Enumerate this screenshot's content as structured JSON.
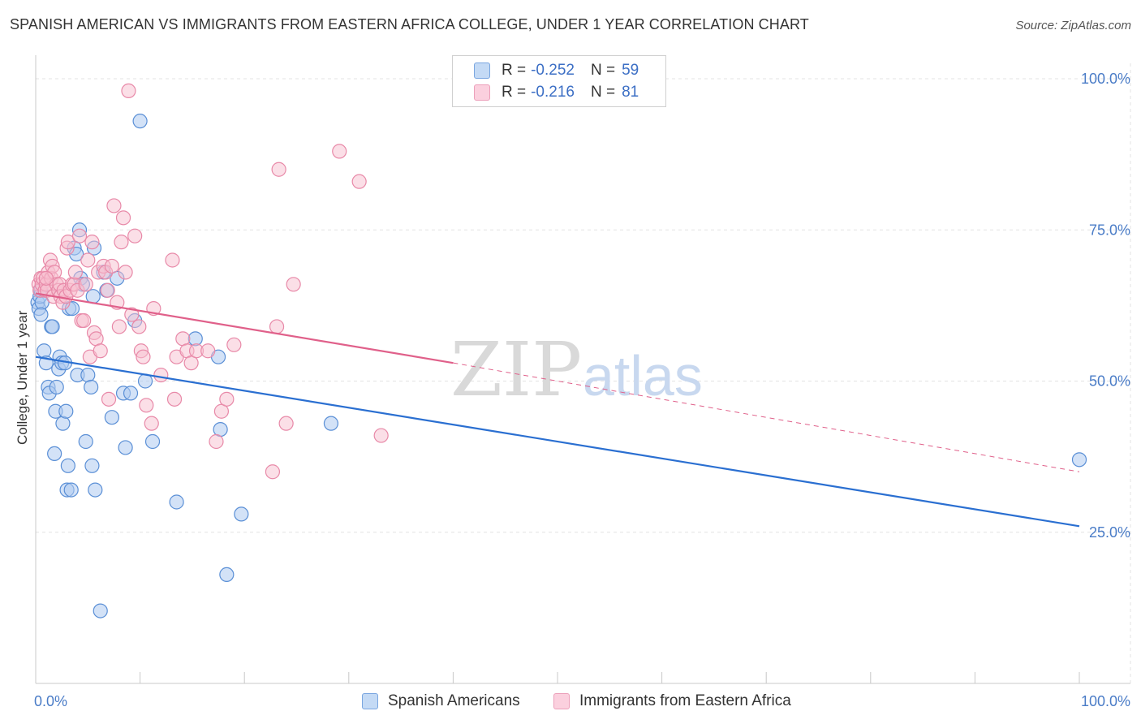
{
  "header": {
    "title": "SPANISH AMERICAN VS IMMIGRANTS FROM EASTERN AFRICA COLLEGE, UNDER 1 YEAR CORRELATION CHART",
    "source": "Source: ZipAtlas.com"
  },
  "legend": {
    "rows": [
      {
        "r_label": "R =",
        "r_value": "-0.252",
        "n_label": "N =",
        "n_value": "59"
      },
      {
        "r_label": "R =",
        "r_value": "-0.216",
        "n_label": "N =",
        "n_value": "81"
      }
    ]
  },
  "watermark": {
    "zip": "ZIP",
    "atlas": "atlas"
  },
  "colors": {
    "blue_fill": "#aecbf0",
    "blue_stroke": "#5a8fd6",
    "blue_line": "#2a6fd1",
    "pink_fill": "#f7bfd0",
    "pink_stroke": "#e889a8",
    "pink_line": "#e0608a",
    "tick_text": "#4a7cc7"
  },
  "chart_data": {
    "type": "scatter",
    "title": "SPANISH AMERICAN VS IMMIGRANTS FROM EASTERN AFRICA COLLEGE, UNDER 1 YEAR CORRELATION CHART",
    "xlabel": "",
    "ylabel": "College, Under 1 year",
    "xlim": [
      0,
      100
    ],
    "ylim": [
      0,
      100
    ],
    "x_tick_labels": [
      "0.0%",
      "100.0%"
    ],
    "y_ticks": [
      25,
      50,
      75,
      100
    ],
    "y_tick_labels": [
      "25.0%",
      "50.0%",
      "75.0%",
      "100.0%"
    ],
    "grid": true,
    "legend_position": "bottom",
    "series": [
      {
        "name": "Spanish Americans",
        "color": "#5a8fd6",
        "r": -0.252,
        "n": 59,
        "trend": {
          "x": [
            0,
            100
          ],
          "y": [
            54,
            26
          ]
        },
        "points": [
          [
            0.2,
            63
          ],
          [
            0.3,
            62
          ],
          [
            0.4,
            64
          ],
          [
            0.5,
            65
          ],
          [
            0.6,
            63
          ],
          [
            0.8,
            55
          ],
          [
            1.0,
            53
          ],
          [
            1.2,
            49
          ],
          [
            1.3,
            48
          ],
          [
            1.5,
            59
          ],
          [
            1.6,
            59
          ],
          [
            1.8,
            38
          ],
          [
            1.9,
            45
          ],
          [
            2.0,
            49
          ],
          [
            2.2,
            52
          ],
          [
            2.3,
            54
          ],
          [
            2.5,
            53
          ],
          [
            2.6,
            43
          ],
          [
            2.8,
            53
          ],
          [
            2.9,
            45
          ],
          [
            3.0,
            32
          ],
          [
            3.1,
            36
          ],
          [
            3.2,
            62
          ],
          [
            3.4,
            32
          ],
          [
            3.5,
            62
          ],
          [
            3.7,
            72
          ],
          [
            3.9,
            71
          ],
          [
            4.0,
            51
          ],
          [
            4.2,
            75
          ],
          [
            4.3,
            67
          ],
          [
            4.5,
            66
          ],
          [
            4.8,
            40
          ],
          [
            5.0,
            51
          ],
          [
            5.3,
            49
          ],
          [
            5.4,
            36
          ],
          [
            5.5,
            64
          ],
          [
            5.6,
            72
          ],
          [
            5.7,
            32
          ],
          [
            6.2,
            12
          ],
          [
            6.5,
            68
          ],
          [
            6.8,
            65
          ],
          [
            7.3,
            44
          ],
          [
            7.8,
            67
          ],
          [
            8.4,
            48
          ],
          [
            8.6,
            39
          ],
          [
            9.1,
            48
          ],
          [
            9.5,
            60
          ],
          [
            10.0,
            93
          ],
          [
            10.5,
            50
          ],
          [
            11.2,
            40
          ],
          [
            13.5,
            30
          ],
          [
            15.3,
            57
          ],
          [
            17.5,
            54
          ],
          [
            17.7,
            42
          ],
          [
            18.3,
            18
          ],
          [
            19.7,
            28
          ],
          [
            28.3,
            43
          ],
          [
            100.0,
            37
          ],
          [
            0.5,
            61
          ]
        ]
      },
      {
        "name": "Immigrants from Eastern Africa",
        "color": "#e889a8",
        "r": -0.216,
        "n": 81,
        "trend": {
          "x": [
            0,
            40
          ],
          "y": [
            64.5,
            53
          ]
        },
        "trend_dashed": {
          "x": [
            40,
            100
          ],
          "y": [
            53,
            35
          ]
        },
        "points": [
          [
            0.3,
            66
          ],
          [
            0.4,
            65
          ],
          [
            0.5,
            67
          ],
          [
            0.6,
            66
          ],
          [
            0.7,
            67
          ],
          [
            0.9,
            65
          ],
          [
            1.0,
            66
          ],
          [
            1.1,
            65
          ],
          [
            1.2,
            68
          ],
          [
            1.4,
            70
          ],
          [
            1.5,
            67
          ],
          [
            1.6,
            69
          ],
          [
            1.7,
            64
          ],
          [
            1.8,
            68
          ],
          [
            2.0,
            66
          ],
          [
            2.2,
            65
          ],
          [
            2.3,
            66
          ],
          [
            2.4,
            64
          ],
          [
            2.6,
            63
          ],
          [
            2.7,
            65
          ],
          [
            2.9,
            64
          ],
          [
            3.0,
            72
          ],
          [
            3.1,
            73
          ],
          [
            3.3,
            65
          ],
          [
            3.5,
            66
          ],
          [
            3.7,
            66
          ],
          [
            3.8,
            68
          ],
          [
            4.0,
            65
          ],
          [
            4.2,
            74
          ],
          [
            4.4,
            60
          ],
          [
            4.6,
            60
          ],
          [
            4.8,
            66
          ],
          [
            5.0,
            70
          ],
          [
            5.2,
            54
          ],
          [
            5.4,
            73
          ],
          [
            5.6,
            58
          ],
          [
            5.8,
            57
          ],
          [
            6.0,
            68
          ],
          [
            6.2,
            55
          ],
          [
            6.5,
            69
          ],
          [
            6.7,
            68
          ],
          [
            6.9,
            65
          ],
          [
            7.0,
            47
          ],
          [
            7.3,
            69
          ],
          [
            7.5,
            79
          ],
          [
            7.8,
            63
          ],
          [
            8.0,
            59
          ],
          [
            8.2,
            73
          ],
          [
            8.4,
            77
          ],
          [
            8.6,
            68
          ],
          [
            8.9,
            98
          ],
          [
            9.2,
            61
          ],
          [
            9.5,
            74
          ],
          [
            9.9,
            59
          ],
          [
            10.1,
            55
          ],
          [
            10.3,
            54
          ],
          [
            10.6,
            46
          ],
          [
            11.1,
            43
          ],
          [
            11.3,
            62
          ],
          [
            12.0,
            51
          ],
          [
            13.1,
            70
          ],
          [
            13.3,
            47
          ],
          [
            13.5,
            54
          ],
          [
            14.1,
            57
          ],
          [
            14.5,
            55
          ],
          [
            14.9,
            53
          ],
          [
            15.4,
            55
          ],
          [
            16.5,
            55
          ],
          [
            17.3,
            40
          ],
          [
            17.8,
            45
          ],
          [
            18.3,
            47
          ],
          [
            19.0,
            56
          ],
          [
            22.7,
            35
          ],
          [
            23.1,
            59
          ],
          [
            23.3,
            85
          ],
          [
            24.0,
            43
          ],
          [
            24.7,
            66
          ],
          [
            29.1,
            88
          ],
          [
            31.0,
            83
          ],
          [
            33.1,
            41
          ],
          [
            1.0,
            67
          ]
        ]
      }
    ]
  }
}
